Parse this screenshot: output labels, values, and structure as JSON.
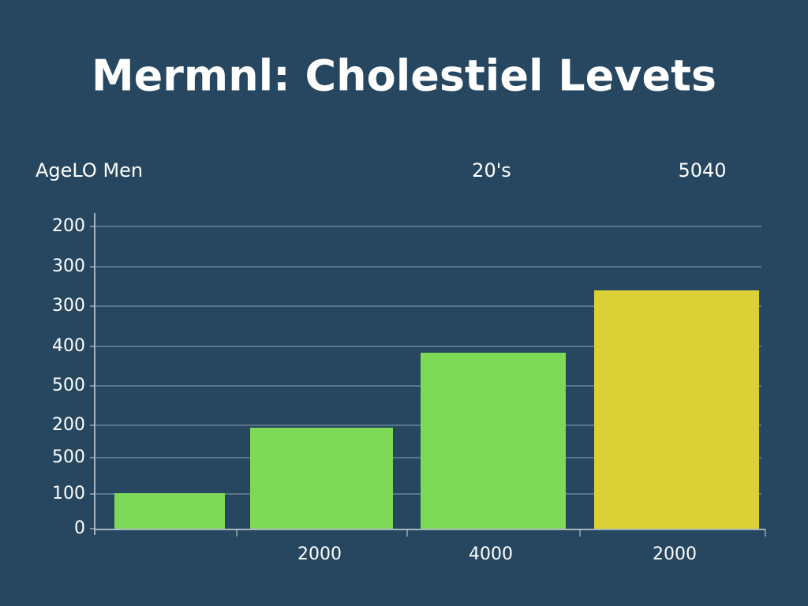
{
  "chart_data": {
    "type": "bar",
    "title": "Mermnl: Cholestiel Levets",
    "annotations": [
      "AgeLO Men",
      "20's",
      "5040"
    ],
    "categories": [
      null,
      "2000",
      "4000",
      "2000"
    ],
    "values": [
      90,
      256,
      446,
      604
    ],
    "colors": [
      "#7ed957",
      "#7ed957",
      "#7ed957",
      "#dbd136"
    ],
    "ylim": [
      0,
      800
    ],
    "yticks": [
      0,
      {
        "value": 88,
        "label": "100"
      },
      {
        "value": 180,
        "label": "500"
      },
      {
        "value": 262,
        "label": "200"
      },
      {
        "value": 362,
        "label": "500"
      },
      {
        "value": 462,
        "label": "400"
      },
      {
        "value": 564,
        "label": "300"
      },
      {
        "value": 664,
        "label": "300"
      },
      {
        "value": 766,
        "label": "200"
      }
    ],
    "grid": true
  }
}
